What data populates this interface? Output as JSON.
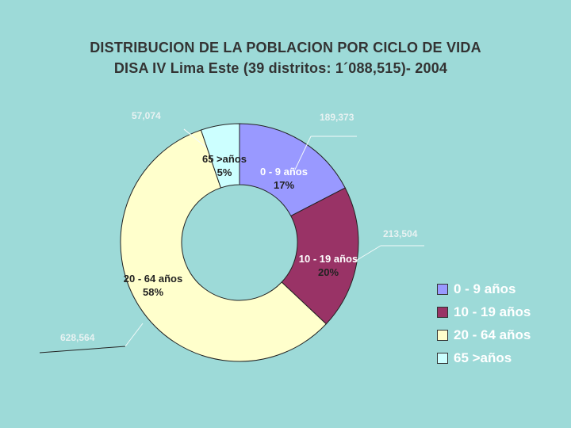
{
  "chart_data": {
    "type": "pie",
    "title": "DISTRIBUCION DE LA POBLACION POR CICLO DE VIDA",
    "subtitle": "DISA IV Lima Este (39 distritos:   1´088,515)- 2004",
    "style": "donut",
    "categories": [
      "0 - 9 años",
      "10 - 19 años",
      "20 - 64 años",
      "65 >años"
    ],
    "values": [
      189373,
      213504,
      628564,
      57074
    ],
    "value_labels": [
      "189,373",
      "213,504",
      "628,564",
      "57,074"
    ],
    "slice_labels": [
      {
        "name": "0 - 9 años",
        "pct": "17%"
      },
      {
        "name": "10 - 19 años",
        "pct": "20%"
      },
      {
        "name": "20 - 64 años",
        "pct": "58%"
      },
      {
        "name": "65 >años",
        "pct": "5%"
      }
    ],
    "colors": [
      "#9999ff",
      "#993366",
      "#ffffcc",
      "#ccffff"
    ],
    "legend": [
      "0 - 9 años",
      "10 - 19 años",
      "20 - 64 años",
      "65 >años"
    ],
    "legend_position": "right"
  }
}
